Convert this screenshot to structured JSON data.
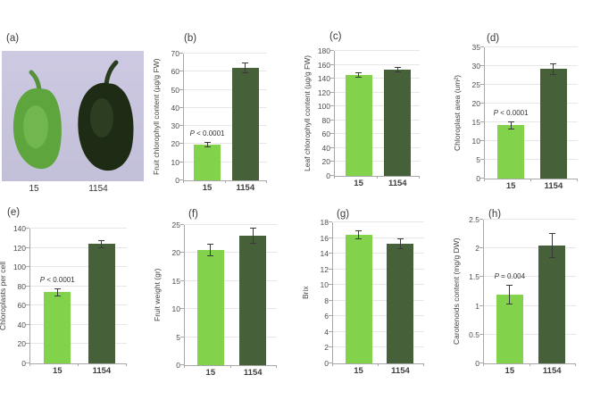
{
  "panel_a": {
    "label": "(a)",
    "x_labels": [
      "15",
      "1154"
    ]
  },
  "style": {
    "bar_15": "#82d24c",
    "bar_1154": "#46613a",
    "axis": "#a8a8a8",
    "gridline": "#e7e7e7",
    "tick_text": "#4d4d4d",
    "label_text": "#3f3f3f",
    "error_bar": "#3a3a3a",
    "photo_bg_top": "#cdc9e2",
    "photo_bg_bottom": "#c2bfd8",
    "pepper_15_body": "#5fa53e",
    "pepper_15_light": "#7fc45c",
    "pepper_15_stem": "#55913a",
    "pepper_1154_body": "#1e2b15",
    "pepper_1154_light": "#35492a",
    "pepper_1154_stem": "#2a3d1f"
  },
  "chart_data": [
    {
      "id": "b",
      "panel_label": "(b)",
      "type": "bar",
      "categories": [
        "15",
        "1154"
      ],
      "values": [
        19.8,
        62
      ],
      "errors": [
        1.5,
        3
      ],
      "ylabel": "Fruit chlorophyll content (µg/g FW)",
      "ylim": [
        0,
        70
      ],
      "ytick_step": 10,
      "annotation": "P < 0.0001",
      "annotation_on": 0
    },
    {
      "id": "c",
      "panel_label": "(c)",
      "type": "bar",
      "categories": [
        "15",
        "1154"
      ],
      "values": [
        145,
        153
      ],
      "errors": [
        4,
        4
      ],
      "ylabel": "Leaf chlorophyll content (µg/g FW)",
      "ylim": [
        0,
        180
      ],
      "ytick_step": 20,
      "annotation": null,
      "annotation_on": null
    },
    {
      "id": "d",
      "panel_label": "(d)",
      "type": "bar",
      "categories": [
        "15",
        "1154"
      ],
      "values": [
        14.2,
        29.2
      ],
      "errors": [
        1.0,
        1.6
      ],
      "ylabel": "Chloroplast area (um²)",
      "ylim": [
        0,
        35
      ],
      "ytick_step": 5,
      "annotation": "P < 0.0001",
      "annotation_on": 0
    },
    {
      "id": "e",
      "panel_label": "(e)",
      "type": "bar",
      "categories": [
        "15",
        "1154"
      ],
      "values": [
        74,
        124
      ],
      "errors": [
        4,
        4
      ],
      "ylabel": "Chloroplasts  per cell",
      "ylim": [
        0,
        140
      ],
      "ytick_step": 20,
      "annotation": "P < 0.0001",
      "annotation_on": 0
    },
    {
      "id": "f",
      "panel_label": "(f)",
      "type": "bar",
      "categories": [
        "15",
        "1154"
      ],
      "values": [
        20.5,
        23.1
      ],
      "errors": [
        1.1,
        1.4
      ],
      "ylabel": "Fruit weight (gr)",
      "ylim": [
        0,
        25
      ],
      "ytick_step": 5,
      "annotation": null,
      "annotation_on": null
    },
    {
      "id": "g",
      "panel_label": "(g)",
      "type": "bar",
      "categories": [
        "15",
        "1154"
      ],
      "values": [
        16.4,
        15.3
      ],
      "errors": [
        0.6,
        0.7
      ],
      "ylabel": "Brix",
      "ylim": [
        0,
        18
      ],
      "ytick_step": 2,
      "annotation": null,
      "annotation_on": null
    },
    {
      "id": "h",
      "panel_label": "(h)",
      "type": "bar",
      "categories": [
        "15",
        "1154"
      ],
      "values": [
        1.2,
        2.05
      ],
      "errors": [
        0.17,
        0.22
      ],
      "ylabel": "Carotenoids content (mg/g DW)",
      "ylim": [
        0,
        2.5
      ],
      "ytick_step": 0.5,
      "annotation": "P = 0.004",
      "annotation_on": 0
    }
  ]
}
